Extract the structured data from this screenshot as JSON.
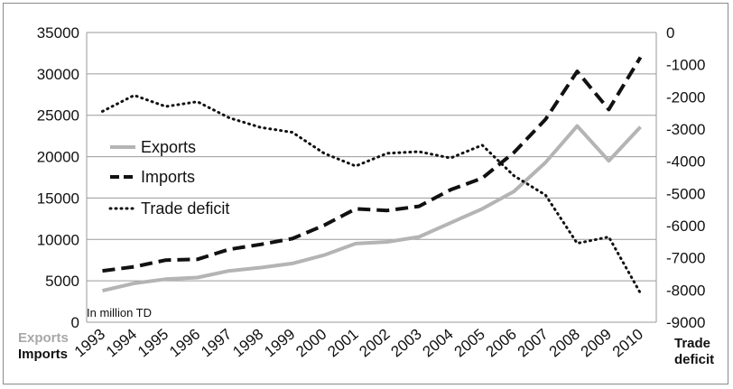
{
  "chart_data": {
    "type": "line",
    "categories": [
      "1993",
      "1994",
      "1995",
      "1996",
      "1997",
      "1998",
      "1999",
      "2000",
      "2001",
      "2002",
      "2003",
      "2004",
      "2005",
      "2006",
      "2007",
      "2008",
      "2009",
      "2010"
    ],
    "series": [
      {
        "name": "Exports",
        "axis": "left",
        "color": "#b4b4b4",
        "style": "solid",
        "values": [
          3800,
          4700,
          5200,
          5400,
          6200,
          6600,
          7100,
          8100,
          9500,
          9700,
          10300,
          12000,
          13700,
          15800,
          19300,
          23700,
          19500,
          23600
        ]
      },
      {
        "name": "Imports",
        "axis": "left",
        "color": "#111111",
        "style": "dashed",
        "values": [
          6200,
          6700,
          7500,
          7600,
          8800,
          9400,
          10100,
          11700,
          13700,
          13500,
          14000,
          16000,
          17400,
          20500,
          24500,
          30300,
          25700,
          32000
        ]
      },
      {
        "name": "Trade deficit",
        "axis": "right",
        "color": "#111111",
        "style": "dotted",
        "values": [
          -2450,
          -1950,
          -2300,
          -2150,
          -2650,
          -2950,
          -3100,
          -3750,
          -4150,
          -3750,
          -3700,
          -3900,
          -3500,
          -4450,
          -5050,
          -6550,
          -6350,
          -8100
        ]
      }
    ],
    "left_axis": {
      "ylim": [
        0,
        35000
      ],
      "ticks": [
        0,
        5000,
        10000,
        15000,
        20000,
        25000,
        30000,
        35000
      ],
      "labels": [
        "Exports",
        "Imports"
      ]
    },
    "right_axis": {
      "ylim": [
        -9000,
        0
      ],
      "ticks": [
        0,
        -1000,
        -2000,
        -3000,
        -4000,
        -5000,
        -6000,
        -7000,
        -8000,
        -9000
      ],
      "label": "Trade deficit"
    },
    "unit_note": "In million TD",
    "grid": true,
    "legend_position": "left-center"
  }
}
